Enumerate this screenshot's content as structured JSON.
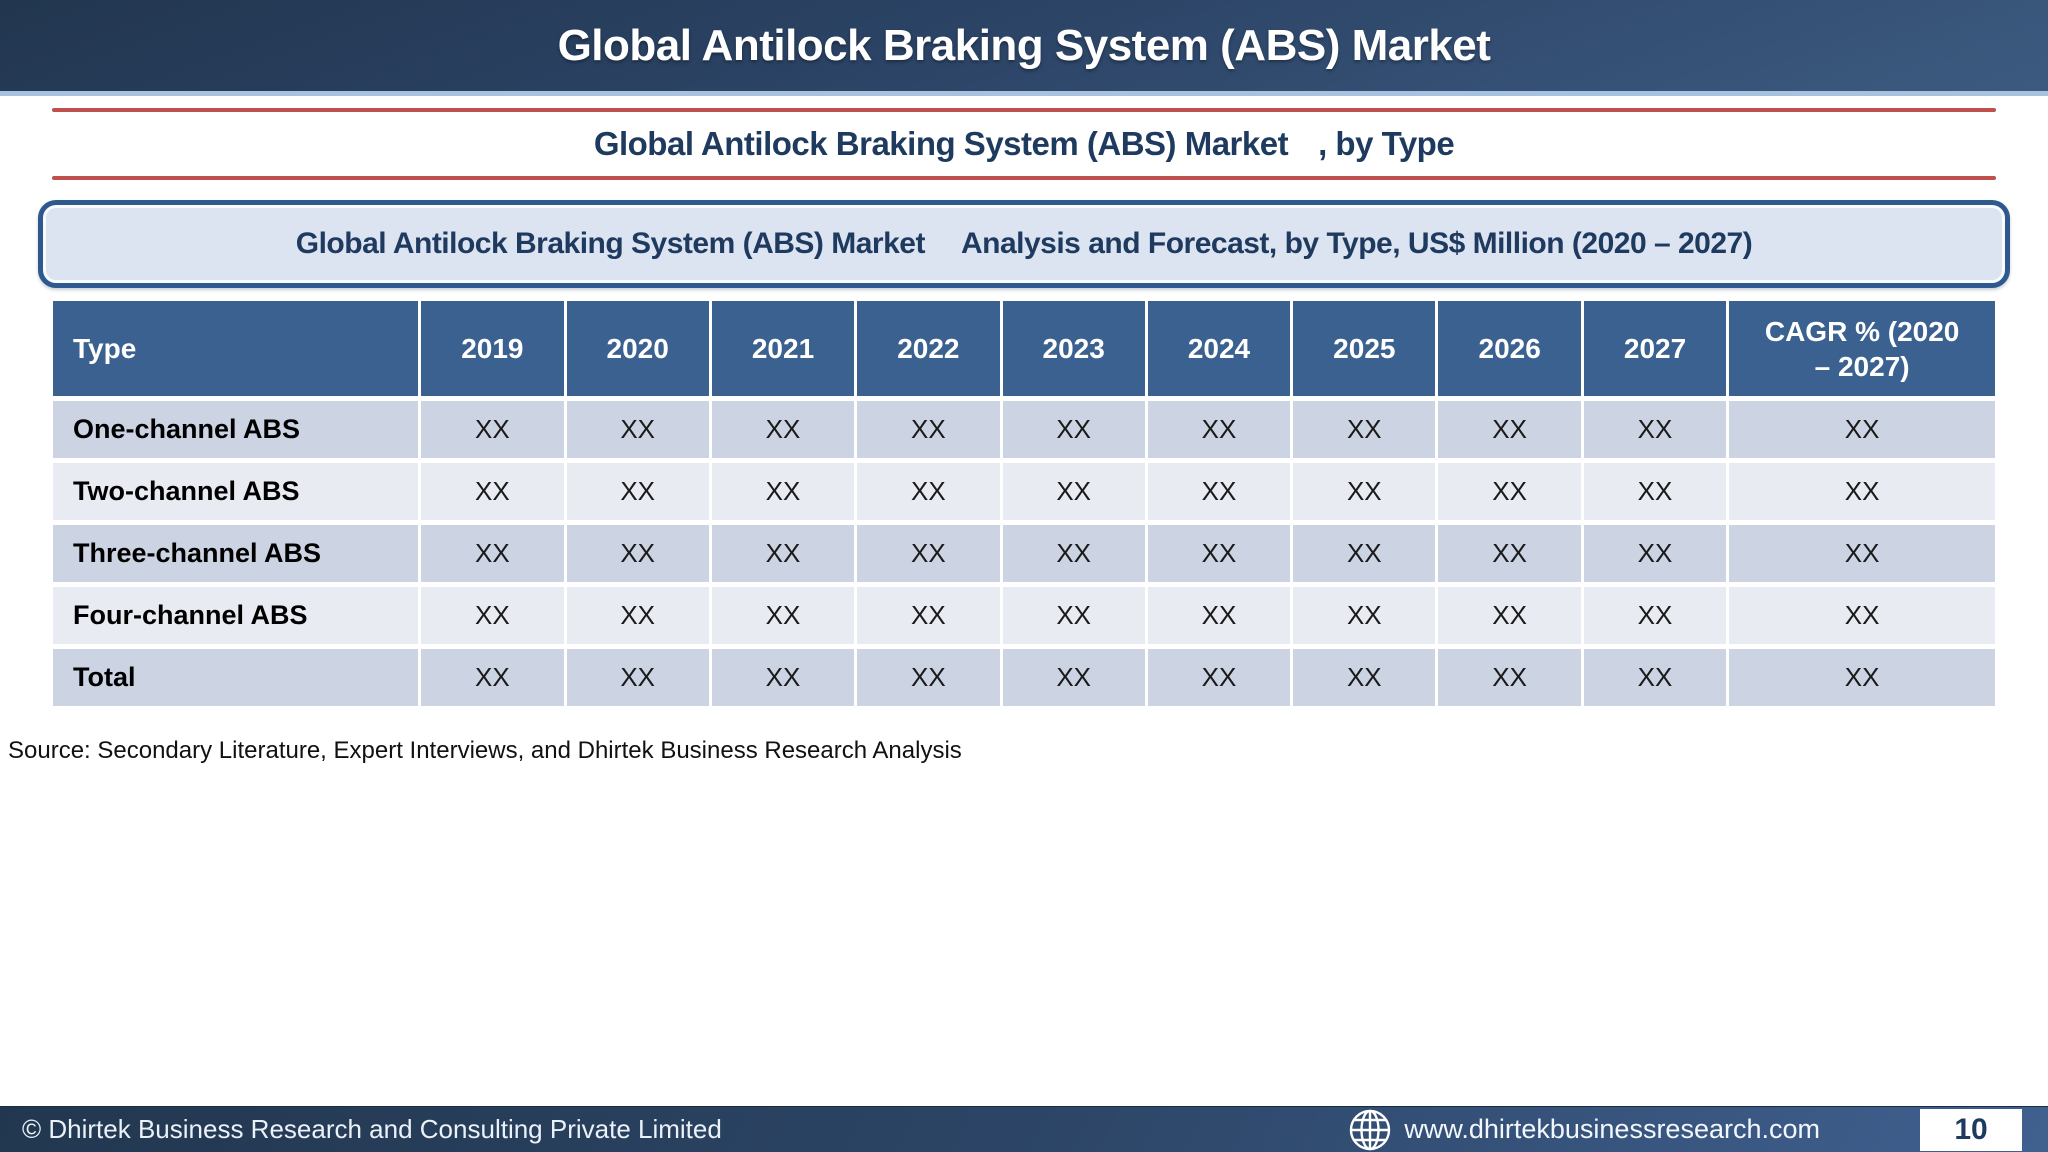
{
  "colors": {
    "accent_red": "#C0504D",
    "table_header_blue": "#3B6191",
    "row_band_dark": "#CCD3E3",
    "row_band_light": "#E9EBF3",
    "navy_text": "#1E3A5F",
    "bar_gradient_top": "#22374F",
    "bar_gradient_bottom": "#40608F",
    "header_underline_blue": "#A6C2DF",
    "banner_fill": "#DCE3F1",
    "banner_border": "#2E598E"
  },
  "header": {
    "title": "Global Antilock Braking System (ABS) Market"
  },
  "subtitle": {
    "market": "Global Antilock Braking System (ABS) Market",
    "suffix": ", by Type"
  },
  "banner": {
    "market": "Global Antilock Braking System (ABS) Market",
    "suffix": "Analysis and Forecast, by Type, US$ Million (2020 – 2027)"
  },
  "table": {
    "columns": [
      "Type",
      "2019",
      "2020",
      "2021",
      "2022",
      "2023",
      "2024",
      "2025",
      "2026",
      "2027",
      "CAGR % (2020 – 2027)"
    ],
    "rows": [
      {
        "label": "One-channel ABS",
        "values": [
          "XX",
          "XX",
          "XX",
          "XX",
          "XX",
          "XX",
          "XX",
          "XX",
          "XX",
          "XX"
        ]
      },
      {
        "label": "Two-channel ABS",
        "values": [
          "XX",
          "XX",
          "XX",
          "XX",
          "XX",
          "XX",
          "XX",
          "XX",
          "XX",
          "XX"
        ]
      },
      {
        "label": "Three-channel ABS",
        "values": [
          "XX",
          "XX",
          "XX",
          "XX",
          "XX",
          "XX",
          "XX",
          "XX",
          "XX",
          "XX"
        ]
      },
      {
        "label": "Four-channel ABS",
        "values": [
          "XX",
          "XX",
          "XX",
          "XX",
          "XX",
          "XX",
          "XX",
          "XX",
          "XX",
          "XX"
        ]
      },
      {
        "label": "Total",
        "values": [
          "XX",
          "XX",
          "XX",
          "XX",
          "XX",
          "XX",
          "XX",
          "XX",
          "XX",
          "XX"
        ]
      }
    ]
  },
  "source": "Source: Secondary Literature, Expert Interviews, and Dhirtek Business Research Analysis",
  "footer": {
    "copyright": "© Dhirtek Business Research and Consulting Private Limited",
    "website": "www.dhirtekbusinessresearch.com",
    "page_number": "10",
    "globe_icon": "globe-icon"
  }
}
